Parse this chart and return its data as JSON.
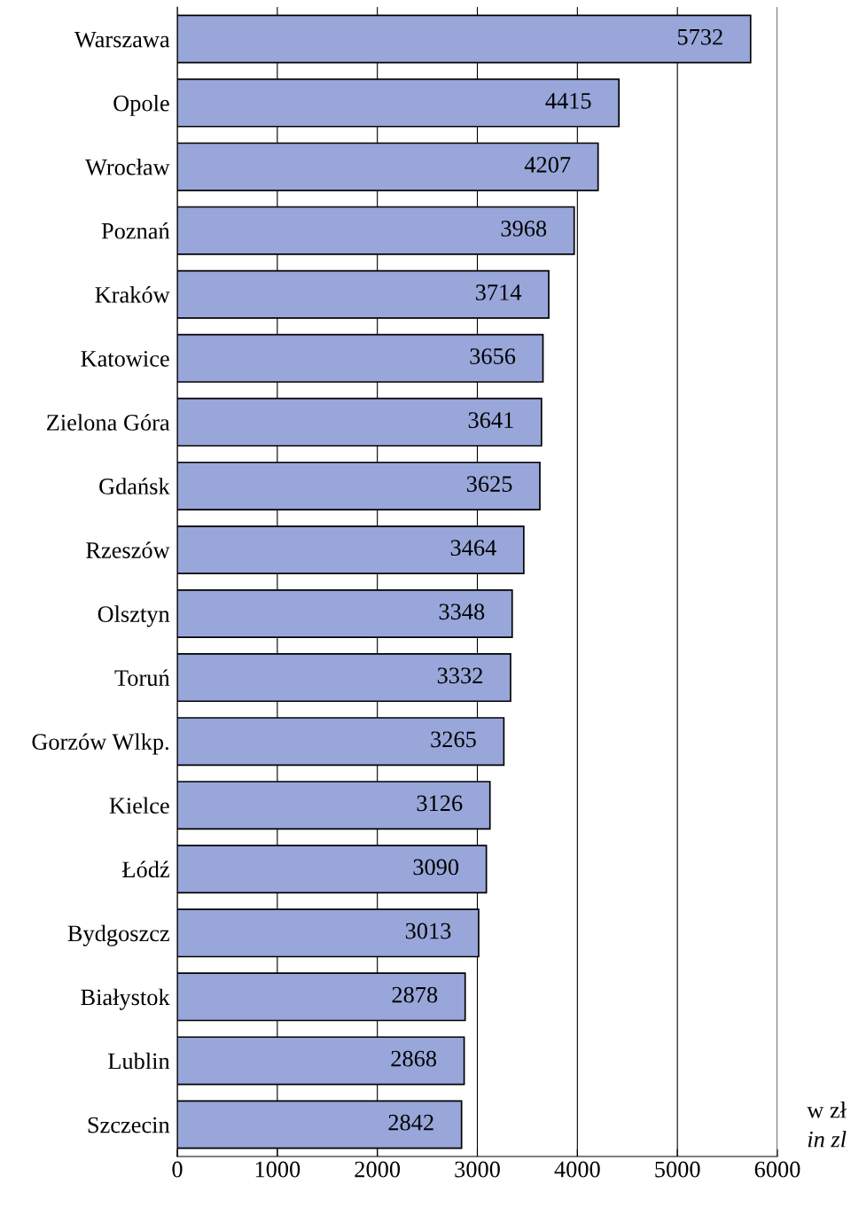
{
  "chart_data": {
    "type": "bar",
    "orientation": "horizontal",
    "categories": [
      "Warszawa",
      "Opole",
      "Wrocław",
      "Poznań",
      "Kraków",
      "Katowice",
      "Zielona Góra",
      "Gdańsk",
      "Rzeszów",
      "Olsztyn",
      "Toruń",
      "Gorzów Wlkp.",
      "Kielce",
      "Łódź",
      "Bydgoszcz",
      "Białystok",
      "Lublin",
      "Szczecin"
    ],
    "values": [
      5732,
      4415,
      4207,
      3968,
      3714,
      3656,
      3641,
      3625,
      3464,
      3348,
      3332,
      3265,
      3126,
      3090,
      3013,
      2878,
      2868,
      2842
    ],
    "color": "#98a6da",
    "xlim": [
      0,
      6000
    ],
    "xticks": [
      0,
      1000,
      2000,
      3000,
      4000,
      5000,
      6000
    ],
    "grid": "x",
    "data_labels": true,
    "annotations": [
      "w zł",
      "in zl"
    ]
  }
}
